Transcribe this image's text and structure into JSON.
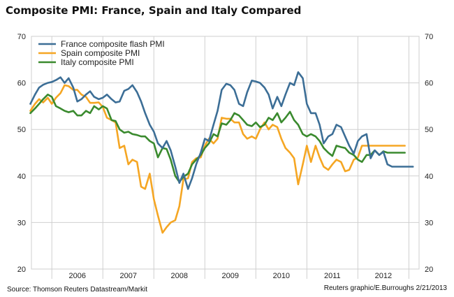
{
  "title": "Composite PMI: France, Spain and Italy Compared",
  "source": "Source: Thomson Reuters Datastream/Markit",
  "credit": "Reuters graphic/E.Burroughs 2/21/2013",
  "colors": {
    "france": "#3c6e96",
    "spain": "#f5a623",
    "italy": "#3a8a2e",
    "grid": "#cfcfcf"
  },
  "chart_data": {
    "type": "line",
    "title": "Composite PMI: France, Spain and Italy Compared",
    "ylim": [
      20,
      70
    ],
    "yticks": [
      20,
      30,
      40,
      50,
      60,
      70
    ],
    "xticks": [
      "2006",
      "2007",
      "2008",
      "2009",
      "2010",
      "2011",
      "2012"
    ],
    "xstart": 2005.6,
    "xend": 2013.2,
    "grid": true,
    "legend_position": "top-left",
    "series": [
      {
        "name": "France composite flash PMI",
        "color": "#3c6e96",
        "x": [
          2005.58,
          2005.67,
          2005.75,
          2005.83,
          2005.92,
          2006.0,
          2006.08,
          2006.17,
          2006.25,
          2006.33,
          2006.42,
          2006.5,
          2006.58,
          2006.67,
          2006.75,
          2006.83,
          2006.92,
          2007.0,
          2007.08,
          2007.17,
          2007.25,
          2007.33,
          2007.42,
          2007.5,
          2007.58,
          2007.67,
          2007.75,
          2007.83,
          2007.92,
          2008.0,
          2008.08,
          2008.17,
          2008.25,
          2008.33,
          2008.42,
          2008.5,
          2008.58,
          2008.67,
          2008.75,
          2008.83,
          2008.92,
          2009.0,
          2009.08,
          2009.17,
          2009.25,
          2009.33,
          2009.42,
          2009.5,
          2009.58,
          2009.67,
          2009.75,
          2009.83,
          2009.92,
          2010.0,
          2010.08,
          2010.17,
          2010.25,
          2010.33,
          2010.42,
          2010.5,
          2010.58,
          2010.67,
          2010.75,
          2010.83,
          2010.92,
          2011.0,
          2011.08,
          2011.17,
          2011.25,
          2011.33,
          2011.42,
          2011.5,
          2011.58,
          2011.67,
          2011.75,
          2011.83,
          2011.92,
          2012.0,
          2012.08,
          2012.17,
          2012.25,
          2012.33,
          2012.42,
          2012.5,
          2012.58,
          2012.67,
          2012.75,
          2012.83,
          2012.92,
          2013.0,
          2013.08
        ],
        "values": [
          55.5,
          57.5,
          59.0,
          59.6,
          60.0,
          60.2,
          60.6,
          61.2,
          60.0,
          61.0,
          59.0,
          56.0,
          56.5,
          57.5,
          58.2,
          57.0,
          56.5,
          56.8,
          57.5,
          56.5,
          55.8,
          56.0,
          58.3,
          58.7,
          59.5,
          58.0,
          56.0,
          53.5,
          51.0,
          49.5,
          47.0,
          46.0,
          47.5,
          45.5,
          42.0,
          38.5,
          40.5,
          37.2,
          39.5,
          42.5,
          45.0,
          48.0,
          47.5,
          51.0,
          54.0,
          58.5,
          59.8,
          59.5,
          58.5,
          55.5,
          55.0,
          58.0,
          60.5,
          60.3,
          60.0,
          59.0,
          57.5,
          54.5,
          57.0,
          55.0,
          57.5,
          60.0,
          59.5,
          62.3,
          61.0,
          55.5,
          53.5,
          53.5,
          51.0,
          47.0,
          48.5,
          49.0,
          51.0,
          50.5,
          48.5,
          46.5,
          44.8,
          47.5,
          48.5,
          49.0,
          43.8,
          45.5,
          44.5,
          45.2,
          42.5,
          42.0,
          42.0,
          42.0,
          42.0,
          42.0,
          42.0
        ]
      },
      {
        "name": "Spain composite PMI",
        "color": "#f5a623",
        "x": [
          2005.58,
          2005.67,
          2005.75,
          2005.83,
          2005.92,
          2006.0,
          2006.08,
          2006.17,
          2006.25,
          2006.33,
          2006.42,
          2006.5,
          2006.58,
          2006.67,
          2006.75,
          2006.83,
          2006.92,
          2007.0,
          2007.08,
          2007.17,
          2007.25,
          2007.33,
          2007.42,
          2007.5,
          2007.58,
          2007.67,
          2007.75,
          2007.83,
          2007.92,
          2008.0,
          2008.08,
          2008.17,
          2008.25,
          2008.33,
          2008.42,
          2008.5,
          2008.58,
          2008.67,
          2008.75,
          2008.83,
          2008.92,
          2009.0,
          2009.08,
          2009.17,
          2009.25,
          2009.33,
          2009.42,
          2009.5,
          2009.58,
          2009.67,
          2009.75,
          2009.83,
          2009.92,
          2010.0,
          2010.08,
          2010.17,
          2010.25,
          2010.33,
          2010.42,
          2010.5,
          2010.58,
          2010.67,
          2010.75,
          2010.83,
          2010.92,
          2011.0,
          2011.08,
          2011.17,
          2011.25,
          2011.33,
          2011.42,
          2011.5,
          2011.58,
          2011.67,
          2011.75,
          2011.83,
          2011.92,
          2012.0,
          2012.08,
          2012.17,
          2012.25,
          2012.33,
          2012.42,
          2012.5,
          2012.58,
          2012.67,
          2012.75,
          2012.83,
          2012.92
        ],
        "values": [
          54.0,
          55.5,
          56.5,
          55.8,
          56.8,
          55.5,
          56.8,
          57.8,
          59.5,
          59.3,
          58.5,
          58.5,
          57.5,
          57.0,
          55.7,
          55.7,
          55.8,
          54.8,
          52.5,
          52.0,
          51.5,
          46.0,
          46.5,
          42.5,
          43.5,
          43.0,
          37.7,
          37.2,
          40.5,
          35.0,
          31.5,
          27.8,
          29.0,
          30.0,
          30.5,
          33.5,
          39.3,
          39.5,
          43.0,
          43.8,
          44.0,
          46.5,
          48.0,
          47.0,
          48.0,
          52.5,
          52.3,
          52.3,
          51.5,
          51.5,
          49.0,
          48.0,
          48.5,
          48.0,
          50.0,
          51.5,
          50.0,
          51.0,
          50.5,
          48.0,
          46.0,
          45.0,
          43.8,
          38.2,
          42.5,
          46.5,
          43.0,
          46.5,
          44.0,
          42.0,
          41.3,
          42.5,
          43.5,
          43.0,
          41.0,
          41.3,
          43.5,
          44.0,
          46.5,
          46.5,
          46.5,
          46.5,
          46.5,
          46.5,
          46.5,
          46.5,
          46.5,
          46.5,
          46.5
        ]
      },
      {
        "name": "Italy composite PMI",
        "color": "#3a8a2e",
        "x": [
          2005.58,
          2005.67,
          2005.75,
          2005.83,
          2005.92,
          2006.0,
          2006.08,
          2006.17,
          2006.25,
          2006.33,
          2006.42,
          2006.5,
          2006.58,
          2006.67,
          2006.75,
          2006.83,
          2006.92,
          2007.0,
          2007.08,
          2007.17,
          2007.25,
          2007.33,
          2007.42,
          2007.5,
          2007.58,
          2007.67,
          2007.75,
          2007.83,
          2007.92,
          2008.0,
          2008.08,
          2008.17,
          2008.25,
          2008.33,
          2008.42,
          2008.5,
          2008.58,
          2008.67,
          2008.75,
          2008.83,
          2008.92,
          2009.0,
          2009.08,
          2009.17,
          2009.25,
          2009.33,
          2009.42,
          2009.5,
          2009.58,
          2009.67,
          2009.75,
          2009.83,
          2009.92,
          2010.0,
          2010.08,
          2010.17,
          2010.25,
          2010.33,
          2010.42,
          2010.5,
          2010.58,
          2010.67,
          2010.75,
          2010.83,
          2010.92,
          2011.0,
          2011.08,
          2011.17,
          2011.25,
          2011.33,
          2011.42,
          2011.5,
          2011.58,
          2011.67,
          2011.75,
          2011.83,
          2011.92,
          2012.0,
          2012.08,
          2012.17,
          2012.25,
          2012.33,
          2012.42,
          2012.5,
          2012.58,
          2012.67,
          2012.75,
          2012.83,
          2012.92
        ],
        "values": [
          53.5,
          54.5,
          55.5,
          56.5,
          57.5,
          57.0,
          55.0,
          54.5,
          54.0,
          53.7,
          54.0,
          53.0,
          53.0,
          54.0,
          53.5,
          55.0,
          54.3,
          55.0,
          54.5,
          52.0,
          51.8,
          50.0,
          49.3,
          49.5,
          49.0,
          48.8,
          48.5,
          48.5,
          47.5,
          47.0,
          44.0,
          46.0,
          45.8,
          43.5,
          40.0,
          38.7,
          39.8,
          40.5,
          42.5,
          43.5,
          44.5,
          46.0,
          47.0,
          49.0,
          48.5,
          51.3,
          51.0,
          52.0,
          53.5,
          53.0,
          52.0,
          51.0,
          50.7,
          51.5,
          50.5,
          51.0,
          52.5,
          52.0,
          53.5,
          51.5,
          52.5,
          53.8,
          52.0,
          51.0,
          49.0,
          48.5,
          49.0,
          48.5,
          47.5,
          46.0,
          45.0,
          44.3,
          46.5,
          46.2,
          46.0,
          45.0,
          44.5,
          43.5,
          43.0,
          44.5,
          44.5,
          45.5,
          44.5,
          45.3,
          45.0,
          45.0,
          45.0,
          45.0,
          45.0
        ]
      }
    ]
  }
}
